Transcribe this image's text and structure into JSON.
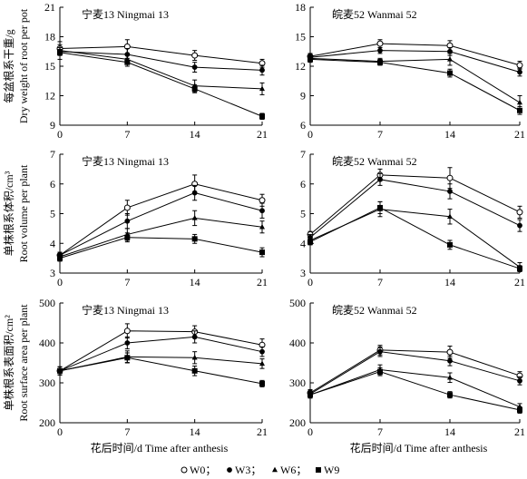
{
  "legend": [
    {
      "label": "W0；",
      "marker": "circle-open"
    },
    {
      "label": "W3；",
      "marker": "circle-filled"
    },
    {
      "label": "W6；",
      "marker": "triangle"
    },
    {
      "label": "W9",
      "marker": "square"
    }
  ],
  "x_title": "花后时间/d   Time after anthesis",
  "chart_data": [
    {
      "type": "line",
      "panel_title": "宁麦13   Ningmai 13",
      "ylabel_lines": [
        "每盆根系干重/g",
        "Dry weight of root per pot"
      ],
      "x": [
        0,
        7,
        14,
        21
      ],
      "xlim": [
        0,
        21
      ],
      "ylim": [
        9,
        21
      ],
      "yticks": [
        9,
        12,
        15,
        18,
        21
      ],
      "series": [
        {
          "name": "W0",
          "values": [
            16.8,
            17.0,
            16.1,
            15.3
          ],
          "err": [
            0.4,
            0.7,
            0.5,
            0.4
          ]
        },
        {
          "name": "W3",
          "values": [
            16.5,
            16.2,
            14.9,
            14.6
          ],
          "err": [
            0.4,
            0.6,
            0.5,
            0.5
          ]
        },
        {
          "name": "W6",
          "values": [
            16.6,
            15.7,
            13.0,
            12.7
          ],
          "err": [
            0.9,
            0.5,
            0.6,
            0.6
          ]
        },
        {
          "name": "W9",
          "values": [
            16.4,
            15.4,
            12.7,
            9.9
          ],
          "err": [
            0.3,
            0.4,
            0.4,
            0.3
          ]
        }
      ]
    },
    {
      "type": "line",
      "panel_title": "皖麦52   Wanmai 52",
      "ylabel_lines": [],
      "x": [
        0,
        7,
        14,
        21
      ],
      "xlim": [
        0,
        21
      ],
      "ylim": [
        6,
        18
      ],
      "yticks": [
        6,
        9,
        12,
        15,
        18
      ],
      "series": [
        {
          "name": "W0",
          "values": [
            13.0,
            14.3,
            14.1,
            12.1
          ],
          "err": [
            0.3,
            0.4,
            0.5,
            0.4
          ]
        },
        {
          "name": "W3",
          "values": [
            12.9,
            13.6,
            13.5,
            11.4
          ],
          "err": [
            0.3,
            0.3,
            0.4,
            0.4
          ]
        },
        {
          "name": "W6",
          "values": [
            12.8,
            12.5,
            12.7,
            8.3
          ],
          "err": [
            0.3,
            0.3,
            0.6,
            0.7
          ]
        },
        {
          "name": "W9",
          "values": [
            12.7,
            12.4,
            11.3,
            7.5
          ],
          "err": [
            0.3,
            0.3,
            0.4,
            0.4
          ]
        }
      ]
    },
    {
      "type": "line",
      "panel_title": "宁麦13   Ningmai 13",
      "ylabel_lines": [
        "单株根系体积/cm³",
        "Root volume per plant"
      ],
      "x": [
        0,
        7,
        14,
        21
      ],
      "xlim": [
        0,
        21
      ],
      "ylim": [
        3,
        7
      ],
      "yticks": [
        3,
        4,
        5,
        6,
        7
      ],
      "series": [
        {
          "name": "W0",
          "values": [
            3.6,
            5.2,
            6.0,
            5.45
          ],
          "err": [
            0.1,
            0.25,
            0.3,
            0.2
          ]
        },
        {
          "name": "W3",
          "values": [
            3.6,
            4.75,
            5.7,
            5.1
          ],
          "err": [
            0.1,
            0.25,
            0.25,
            0.25
          ]
        },
        {
          "name": "W6",
          "values": [
            3.55,
            4.3,
            4.85,
            4.55
          ],
          "err": [
            0.1,
            0.2,
            0.25,
            0.2
          ]
        },
        {
          "name": "W9",
          "values": [
            3.5,
            4.2,
            4.15,
            3.7
          ],
          "err": [
            0.1,
            0.15,
            0.15,
            0.15
          ]
        }
      ]
    },
    {
      "type": "line",
      "panel_title": "皖麦52   Wanmai 52",
      "ylabel_lines": [],
      "x": [
        0,
        7,
        14,
        21
      ],
      "xlim": [
        0,
        21
      ],
      "ylim": [
        3,
        7
      ],
      "yticks": [
        3,
        4,
        5,
        6,
        7
      ],
      "series": [
        {
          "name": "W0",
          "values": [
            4.3,
            6.3,
            6.2,
            5.05
          ],
          "err": [
            0.1,
            0.2,
            0.35,
            0.2
          ]
        },
        {
          "name": "W3",
          "values": [
            4.2,
            6.15,
            5.75,
            4.6
          ],
          "err": [
            0.1,
            0.2,
            0.25,
            0.2
          ]
        },
        {
          "name": "W6",
          "values": [
            4.1,
            5.15,
            4.9,
            3.2
          ],
          "err": [
            0.1,
            0.25,
            0.25,
            0.15
          ]
        },
        {
          "name": "W9",
          "values": [
            4.05,
            5.2,
            3.95,
            3.15
          ],
          "err": [
            0.1,
            0.2,
            0.15,
            0.1
          ]
        }
      ]
    },
    {
      "type": "line",
      "panel_title": "宁麦13   Ningmai 13",
      "ylabel_lines": [
        "单株根系表面积/cm²",
        "Root surface area per plant"
      ],
      "x": [
        0,
        7,
        14,
        21
      ],
      "xlim": [
        0,
        21
      ],
      "ylim": [
        200,
        500
      ],
      "yticks": [
        200,
        300,
        400,
        500
      ],
      "series": [
        {
          "name": "W0",
          "values": [
            330,
            430,
            428,
            395
          ],
          "err": [
            10,
            18,
            15,
            15
          ]
        },
        {
          "name": "W3",
          "values": [
            330,
            400,
            415,
            378
          ],
          "err": [
            10,
            15,
            15,
            12
          ]
        },
        {
          "name": "W6",
          "values": [
            330,
            365,
            363,
            348
          ],
          "err": [
            10,
            15,
            15,
            12
          ]
        },
        {
          "name": "W9",
          "values": [
            330,
            363,
            330,
            298
          ],
          "err": [
            10,
            12,
            12,
            8
          ]
        }
      ]
    },
    {
      "type": "line",
      "panel_title": "皖麦52   Wanmai 52",
      "ylabel_lines": [],
      "x": [
        0,
        7,
        14,
        21
      ],
      "xlim": [
        0,
        21
      ],
      "ylim": [
        200,
        500
      ],
      "yticks": [
        200,
        300,
        400,
        500
      ],
      "series": [
        {
          "name": "W0",
          "values": [
            275,
            382,
            377,
            318
          ],
          "err": [
            8,
            12,
            15,
            10
          ]
        },
        {
          "name": "W3",
          "values": [
            272,
            378,
            355,
            305
          ],
          "err": [
            8,
            12,
            12,
            10
          ]
        },
        {
          "name": "W6",
          "values": [
            270,
            333,
            313,
            240
          ],
          "err": [
            8,
            12,
            12,
            8
          ]
        },
        {
          "name": "W9",
          "values": [
            270,
            328,
            270,
            232
          ],
          "err": [
            8,
            10,
            8,
            8
          ]
        }
      ]
    }
  ]
}
